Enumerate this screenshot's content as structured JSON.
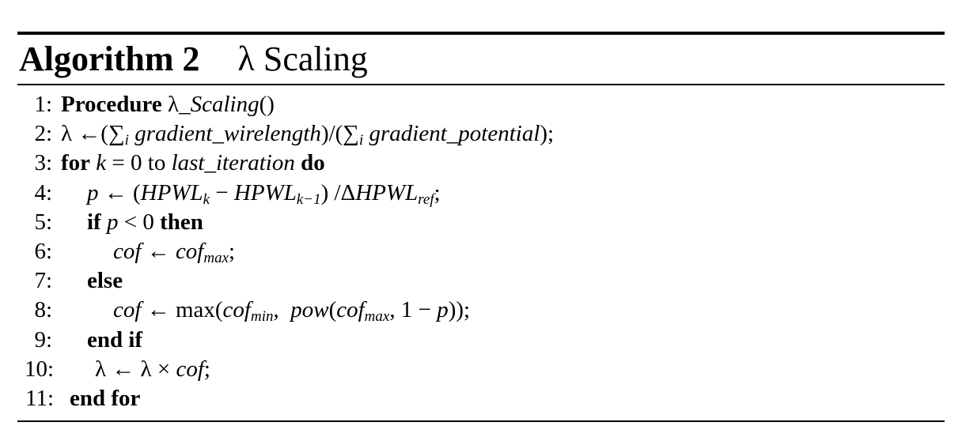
{
  "title": {
    "label": "Algorithm 2",
    "name": "λ Scaling"
  },
  "lines": [
    {
      "num": "1:",
      "tokens": [
        {
          "t": "Procedure",
          "s": "b"
        },
        {
          "t": " λ",
          "s": "n"
        },
        {
          "t": "_Scaling",
          "s": "i"
        },
        {
          "t": "()",
          "s": "n"
        }
      ]
    },
    {
      "num": "2:",
      "tokens": [
        {
          "t": "λ ←(∑",
          "s": "n"
        },
        {
          "t": "i",
          "s": "sub-i"
        },
        {
          "t": " gradient_wirelength",
          "s": "i"
        },
        {
          "t": ")/(∑",
          "s": "n"
        },
        {
          "t": "i",
          "s": "sub-i"
        },
        {
          "t": " gradient_potential",
          "s": "i"
        },
        {
          "t": ");",
          "s": "n"
        }
      ]
    },
    {
      "num": "3:",
      "tokens": [
        {
          "t": "for",
          "s": "b"
        },
        {
          "t": " ",
          "s": "n"
        },
        {
          "t": "k",
          "s": "i"
        },
        {
          "t": " = 0 to ",
          "s": "n"
        },
        {
          "t": "last_iteration",
          "s": "i"
        },
        {
          "t": " ",
          "s": "n"
        },
        {
          "t": "do",
          "s": "b"
        }
      ]
    },
    {
      "num": "4:",
      "tokens": [
        {
          "t": "p",
          "s": "i"
        },
        {
          "t": " ← (",
          "s": "n"
        },
        {
          "t": "HPWL",
          "s": "i"
        },
        {
          "t": "k",
          "s": "sub-i"
        },
        {
          "t": " − ",
          "s": "n"
        },
        {
          "t": "HPWL",
          "s": "i"
        },
        {
          "t": "k−1",
          "s": "sub-i"
        },
        {
          "t": ") /Δ",
          "s": "n"
        },
        {
          "t": "HPWL",
          "s": "i"
        },
        {
          "t": "ref",
          "s": "sub-i"
        },
        {
          "t": ";",
          "s": "n"
        }
      ]
    },
    {
      "num": "5:",
      "tokens": [
        {
          "t": "if",
          "s": "b"
        },
        {
          "t": " ",
          "s": "n"
        },
        {
          "t": "p",
          "s": "i"
        },
        {
          "t": " < 0 ",
          "s": "n"
        },
        {
          "t": "then",
          "s": "b"
        }
      ]
    },
    {
      "num": "6:",
      "tokens": [
        {
          "t": "cof",
          "s": "i"
        },
        {
          "t": " ← ",
          "s": "n"
        },
        {
          "t": "cof",
          "s": "i"
        },
        {
          "t": "max",
          "s": "sub-i"
        },
        {
          "t": ";",
          "s": "n"
        }
      ]
    },
    {
      "num": "7:",
      "tokens": [
        {
          "t": "else",
          "s": "b"
        }
      ]
    },
    {
      "num": "8:",
      "tokens": [
        {
          "t": "cof",
          "s": "i"
        },
        {
          "t": " ← max(",
          "s": "n"
        },
        {
          "t": "cof",
          "s": "i"
        },
        {
          "t": "min",
          "s": "sub-i"
        },
        {
          "t": ",  ",
          "s": "n"
        },
        {
          "t": "pow",
          "s": "i"
        },
        {
          "t": "(",
          "s": "n"
        },
        {
          "t": "cof",
          "s": "i"
        },
        {
          "t": "max",
          "s": "sub-i"
        },
        {
          "t": ", 1 − ",
          "s": "n"
        },
        {
          "t": "p",
          "s": "i"
        },
        {
          "t": "));",
          "s": "n"
        }
      ]
    },
    {
      "num": "9:",
      "tokens": [
        {
          "t": "end if",
          "s": "b"
        }
      ]
    },
    {
      "num": "10:",
      "tokens": [
        {
          "t": "λ ← λ × ",
          "s": "n"
        },
        {
          "t": "cof",
          "s": "i"
        },
        {
          "t": ";",
          "s": "n"
        }
      ]
    },
    {
      "num": "11:",
      "tokens": [
        {
          "t": "end for",
          "s": "b"
        }
      ]
    }
  ]
}
